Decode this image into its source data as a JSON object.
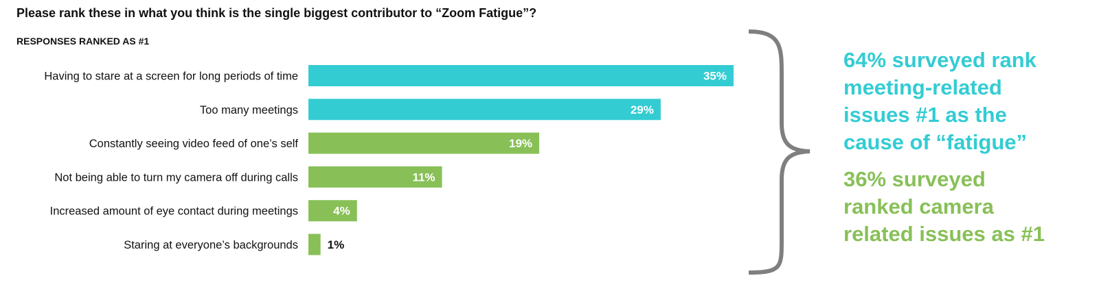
{
  "title": "Please rank these in what you think is the single biggest contributor to “Zoom Fatigue”?",
  "subtitle": "RESPONSES RANKED AS #1",
  "colors": {
    "meeting": "#33CCD3",
    "camera": "#88C057",
    "brace": "#7F7F7F",
    "text": "#111111"
  },
  "chart_data": {
    "type": "bar",
    "orientation": "horizontal",
    "categories": [
      "Having to stare at a screen for long periods of time",
      "Too many meetings",
      "Constantly seeing video feed of one’s self",
      "Not being able to turn my camera off during calls",
      "Increased amount of eye contact during meetings",
      "Staring at everyone’s backgrounds"
    ],
    "values": [
      35,
      29,
      19,
      11,
      4,
      1
    ],
    "value_labels": [
      "35%",
      "29%",
      "19%",
      "11%",
      "4%",
      "1%"
    ],
    "groups": [
      "meeting",
      "meeting",
      "camera",
      "camera",
      "camera",
      "camera"
    ],
    "unit": "%",
    "xlim": [
      0,
      35
    ],
    "grid": false,
    "legend": "none"
  },
  "callouts": {
    "meeting": {
      "lines": [
        "64% surveyed rank",
        "meeting-related",
        "issues #1 as the",
        "cause of “fatigue”"
      ]
    },
    "camera": {
      "lines": [
        "36% surveyed",
        "ranked camera",
        "related issues as #1"
      ]
    }
  }
}
